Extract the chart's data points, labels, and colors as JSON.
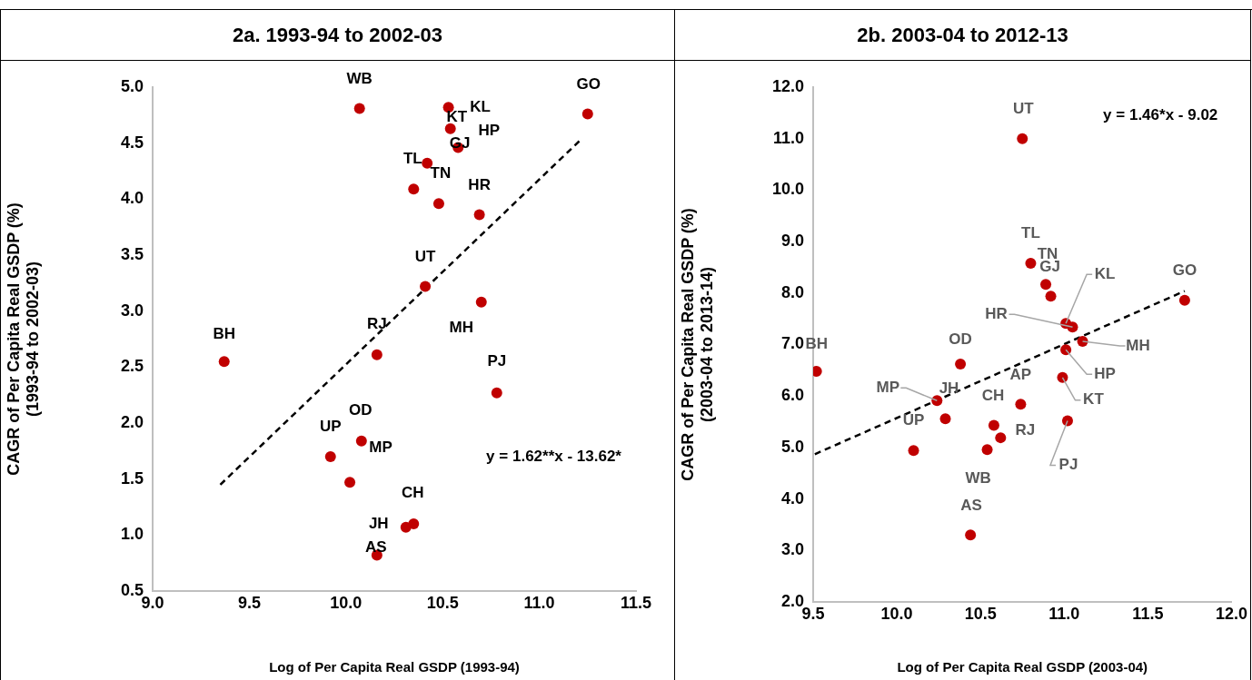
{
  "chart_data": [
    {
      "type": "scatter",
      "title": "2a. 1993-94 to 2002-03",
      "xlabel": "Log of Per Capita Real GSDP (1993-94)",
      "ylabel": "CAGR of Per Capita Real GSDP (%)\n(1993-94 to 2002-03)",
      "marker": "circle",
      "grid": false,
      "xlim": [
        9,
        11.5
      ],
      "xticks": [
        {
          "value": 9,
          "label": "9.0"
        },
        9.5,
        {
          "value": 10,
          "label": "10.0"
        },
        10.5,
        {
          "value": 11,
          "label": "11.0"
        },
        11.5
      ],
      "ylim": [
        0.5,
        5
      ],
      "yticks": [
        0.5,
        {
          "value": 1,
          "label": "1.0"
        },
        1.5,
        {
          "value": 2,
          "label": "2.0"
        },
        2.5,
        {
          "value": 3,
          "label": "3.0"
        },
        3.5,
        {
          "value": 4,
          "label": "4.0"
        },
        4.5,
        {
          "value": 5,
          "label": "5.0"
        }
      ],
      "series": [
        {
          "color": "#c00000",
          "x": [
            10.07,
            10.53,
            10.54,
            10.58,
            10.42,
            11.25,
            10.35,
            10.48,
            10.69,
            10.41,
            10.7,
            10.16,
            9.37,
            10.78,
            10.08,
            9.92,
            10.02,
            10.35,
            10.31,
            10.16
          ],
          "values": [
            4.81,
            4.82,
            4.63,
            4.46,
            4.32,
            4.76,
            4.09,
            3.96,
            3.86,
            3.22,
            3.08,
            2.61,
            2.55,
            2.27,
            1.84,
            1.7,
            1.47,
            1.1,
            1.07,
            0.82
          ]
        },
        {
          "type": "line",
          "color": "#000000",
          "line_style": "dashed",
          "marker": "none",
          "x": [
            9.35,
            11.22
          ],
          "values": [
            1.45,
            4.54
          ]
        }
      ],
      "annotations": [
        {
          "text": "WB",
          "x": 10.07,
          "y": 4.81
        },
        {
          "text": "KL",
          "x": 10.53,
          "y": 4.82
        },
        {
          "text": "KT",
          "x": 10.54,
          "y": 4.63
        },
        {
          "text": "HP",
          "x": 10.58,
          "y": 4.46
        },
        {
          "text": "GJ",
          "x": 10.42,
          "y": 4.32
        },
        {
          "text": "GO",
          "x": 11.25,
          "y": 4.76
        },
        {
          "text": "TL",
          "x": 10.35,
          "y": 4.09
        },
        {
          "text": "TN",
          "x": 10.48,
          "y": 3.96
        },
        {
          "text": "HR",
          "x": 10.69,
          "y": 3.86
        },
        {
          "text": "UT",
          "x": 10.41,
          "y": 3.22
        },
        {
          "text": "MH",
          "x": 10.7,
          "y": 3.08
        },
        {
          "text": "RJ",
          "x": 10.16,
          "y": 2.61
        },
        {
          "text": "BH",
          "x": 9.37,
          "y": 2.55
        },
        {
          "text": "PJ",
          "x": 10.78,
          "y": 2.27
        },
        {
          "text": "OD",
          "x": 10.08,
          "y": 1.84
        },
        {
          "text": "UP",
          "x": 9.92,
          "y": 1.7
        },
        {
          "text": "MP",
          "x": 10.02,
          "y": 1.47
        },
        {
          "text": "CH",
          "x": 10.35,
          "y": 1.1
        },
        {
          "text": "JH",
          "x": 10.31,
          "y": 1.07
        },
        {
          "text": "AS",
          "x": 10.16,
          "y": 0.82
        },
        "y = 1.62**x - 13.62*"
      ]
    },
    {
      "type": "scatter",
      "title": "2b. 2003-04 to 2012-13",
      "xlabel": "Log of Per Capita Real GSDP (2003-04)",
      "ylabel": "CAGR of Per Capita Real GSDP (%)\n(2003-04 to 2013-14)",
      "marker": "circle",
      "grid": false,
      "xlim": [
        9.5,
        12
      ],
      "xticks": [
        9.5,
        {
          "value": 10,
          "label": "10.0"
        },
        10.5,
        {
          "value": 11,
          "label": "11.0"
        },
        11.5,
        {
          "value": 12,
          "label": "12.0"
        }
      ],
      "ylim": [
        2,
        12
      ],
      "yticks": [
        {
          "value": 2,
          "label": "2.0"
        },
        {
          "value": 3,
          "label": "3.0"
        },
        {
          "value": 4,
          "label": "4.0"
        },
        {
          "value": 5,
          "label": "5.0"
        },
        {
          "value": 6,
          "label": "6.0"
        },
        {
          "value": 7,
          "label": "7.0"
        },
        {
          "value": 8,
          "label": "8.0"
        },
        {
          "value": 9,
          "label": "9.0"
        },
        {
          "value": 10,
          "label": "10.0"
        },
        {
          "value": 11,
          "label": "11.0"
        },
        {
          "value": 12,
          "label": "12.0"
        }
      ],
      "series": [
        {
          "color": "#c00000",
          "x": [
            10.75,
            10.8,
            10.89,
            10.92,
            11.72,
            11.01,
            11.05,
            11.11,
            11.01,
            9.52,
            10.38,
            10.24,
            10.29,
            10.1,
            10.58,
            10.62,
            10.74,
            10.54,
            10.44,
            10.99,
            11.02
          ],
          "values": [
            11.0,
            8.58,
            8.17,
            7.94,
            7.86,
            7.41,
            7.34,
            7.06,
            6.9,
            6.48,
            6.62,
            5.91,
            5.56,
            4.94,
            5.43,
            5.19,
            5.84,
            4.96,
            3.3,
            6.36,
            5.52
          ]
        },
        {
          "type": "line",
          "color": "#000000",
          "line_style": "dashed",
          "marker": "none",
          "x": [
            9.51,
            11.72
          ],
          "values": [
            4.87,
            8.04
          ]
        }
      ],
      "annotations": [
        {
          "text": "UT",
          "x": 10.75,
          "y": 11.0
        },
        {
          "text": "TL",
          "x": 10.8,
          "y": 8.58
        },
        {
          "text": "TN",
          "x": 10.89,
          "y": 8.17
        },
        {
          "text": "GJ",
          "x": 10.92,
          "y": 7.94
        },
        {
          "text": "GO",
          "x": 11.72,
          "y": 7.86
        },
        {
          "text": "KL",
          "x": 11.01,
          "y": 7.41
        },
        {
          "text": "HR",
          "x": 11.05,
          "y": 7.34
        },
        {
          "text": "MH",
          "x": 11.11,
          "y": 7.06
        },
        {
          "text": "HP",
          "x": 11.01,
          "y": 6.9
        },
        {
          "text": "BH",
          "x": 9.52,
          "y": 6.48
        },
        {
          "text": "OD",
          "x": 10.38,
          "y": 6.62
        },
        {
          "text": "MP",
          "x": 10.24,
          "y": 5.91
        },
        {
          "text": "JH",
          "x": 10.29,
          "y": 5.56
        },
        {
          "text": "UP",
          "x": 10.1,
          "y": 4.94
        },
        {
          "text": "CH",
          "x": 10.58,
          "y": 5.43
        },
        {
          "text": "RJ",
          "x": 10.62,
          "y": 5.19
        },
        {
          "text": "AP",
          "x": 10.74,
          "y": 5.84
        },
        {
          "text": "WB",
          "x": 10.54,
          "y": 4.96
        },
        {
          "text": "AS",
          "x": 10.44,
          "y": 3.3
        },
        {
          "text": "KT",
          "x": 10.99,
          "y": 6.36
        },
        {
          "text": "PJ",
          "x": 11.02,
          "y": 5.52
        },
        "y = 1.46*x - 9.02"
      ]
    }
  ]
}
